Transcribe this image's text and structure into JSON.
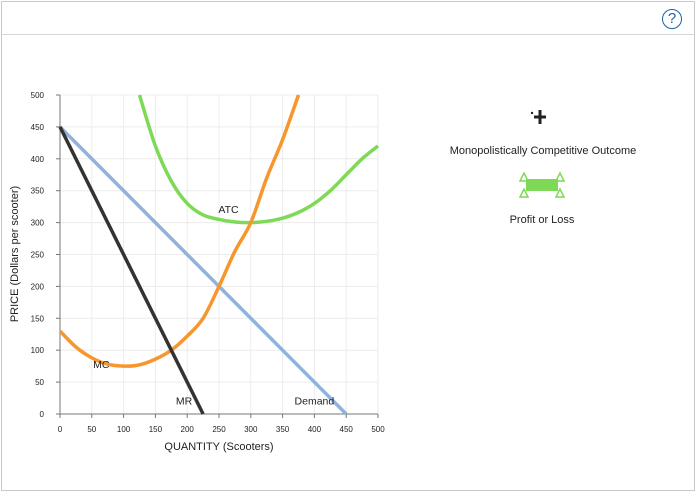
{
  "help_button": {
    "label": "?",
    "icon": "help-icon"
  },
  "legend": {
    "tools": [
      {
        "label": "Monopolistically Competitive Outcome",
        "icon": "plus-point-icon",
        "color": "#222222"
      },
      {
        "label": "Profit or Loss",
        "icon": "profit-area-icon",
        "color": "#7ed957"
      }
    ]
  },
  "chart_data": {
    "type": "line",
    "xlabel": "QUANTITY (Scooters)",
    "ylabel": "PRICE (Dollars per scooter)",
    "xlim": [
      0,
      500
    ],
    "ylim": [
      0,
      500
    ],
    "x_ticks": [
      "0",
      "50",
      "100",
      "150",
      "200",
      "250",
      "300",
      "350",
      "400",
      "450",
      "500"
    ],
    "y_ticks": [
      "0",
      "50",
      "100",
      "150",
      "200",
      "250",
      "300",
      "350",
      "400",
      "450",
      "500"
    ],
    "grid": true,
    "series": [
      {
        "name": "Demand",
        "color": "#8fb3dc",
        "x": [
          0,
          450
        ],
        "y": [
          450,
          0
        ]
      },
      {
        "name": "MR",
        "color": "#333333",
        "x": [
          0,
          225
        ],
        "y": [
          450,
          0
        ]
      },
      {
        "name": "MC",
        "color": "#f7962d",
        "x": [
          0,
          25,
          50,
          75,
          100,
          125,
          150,
          175,
          200,
          225,
          250,
          275,
          300,
          325,
          350,
          375
        ],
        "y": [
          130,
          105,
          88,
          78,
          75,
          77,
          86,
          100,
          122,
          150,
          200,
          255,
          300,
          370,
          430,
          500
        ]
      },
      {
        "name": "ATC",
        "color": "#7ed957",
        "x": [
          125,
          150,
          175,
          200,
          225,
          250,
          275,
          300,
          325,
          350,
          375,
          400,
          425,
          450,
          475,
          500
        ],
        "y": [
          500,
          420,
          365,
          330,
          312,
          305,
          301,
          300,
          302,
          307,
          316,
          330,
          350,
          375,
          400,
          420
        ]
      }
    ],
    "labels": [
      {
        "text": "ATC",
        "x": 265,
        "y": 315
      },
      {
        "text": "MC",
        "x": 65,
        "y": 72
      },
      {
        "text": "MR",
        "x": 195,
        "y": 15
      },
      {
        "text": "Demand",
        "x": 400,
        "y": 15
      }
    ]
  }
}
